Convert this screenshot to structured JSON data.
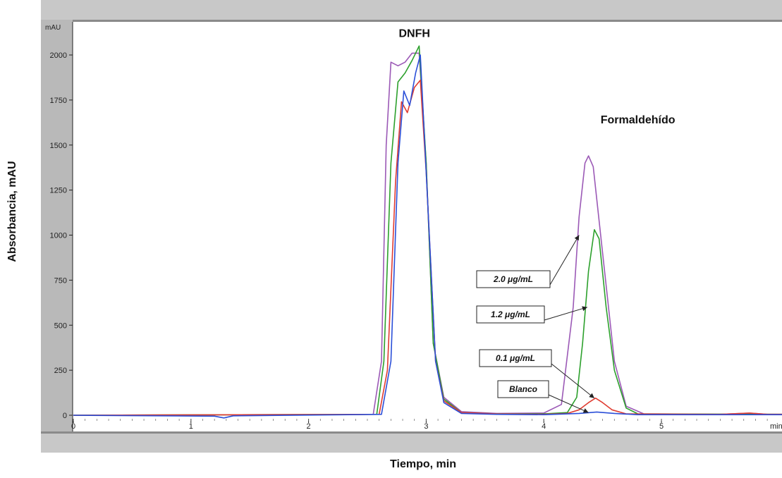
{
  "chart_data": {
    "type": "line",
    "title": "",
    "xlabel": "Tiempo, min",
    "ylabel": "Absorbancia, mAU",
    "y_unit_label": "mAU",
    "x_unit_label": "min",
    "xlim": [
      0,
      6.05
    ],
    "ylim": [
      -50,
      2200
    ],
    "x_ticks": [
      "0",
      "1",
      "2",
      "3",
      "4",
      "5"
    ],
    "y_ticks": [
      "0",
      "250",
      "500",
      "750",
      "1000",
      "1250",
      "1500",
      "1750",
      "2000"
    ],
    "peak_labels": [
      {
        "text": "DNFH",
        "x": 2.9,
        "y": 2100
      },
      {
        "text": "Formaldehído",
        "x": 4.8,
        "y": 1620
      }
    ],
    "series": [
      {
        "name": "2.0 μg/mL",
        "color": "#9b59b6",
        "points": [
          [
            0,
            0
          ],
          [
            2.55,
            5
          ],
          [
            2.62,
            300
          ],
          [
            2.66,
            1500
          ],
          [
            2.7,
            1960
          ],
          [
            2.76,
            1940
          ],
          [
            2.82,
            1960
          ],
          [
            2.88,
            2010
          ],
          [
            2.94,
            2010
          ],
          [
            3.0,
            1400
          ],
          [
            3.06,
            400
          ],
          [
            3.15,
            100
          ],
          [
            3.3,
            20
          ],
          [
            3.6,
            10
          ],
          [
            4.0,
            12
          ],
          [
            4.15,
            60
          ],
          [
            4.25,
            600
          ],
          [
            4.3,
            1100
          ],
          [
            4.35,
            1400
          ],
          [
            4.38,
            1440
          ],
          [
            4.42,
            1380
          ],
          [
            4.5,
            900
          ],
          [
            4.6,
            300
          ],
          [
            4.7,
            50
          ],
          [
            4.85,
            8
          ],
          [
            5.5,
            5
          ],
          [
            5.75,
            12
          ],
          [
            5.9,
            5
          ],
          [
            6.05,
            5
          ]
        ]
      },
      {
        "name": "1.2 μg/mL",
        "color": "#2ca02c",
        "points": [
          [
            0,
            0
          ],
          [
            2.58,
            5
          ],
          [
            2.64,
            300
          ],
          [
            2.7,
            1400
          ],
          [
            2.76,
            1850
          ],
          [
            2.82,
            1900
          ],
          [
            2.88,
            1970
          ],
          [
            2.94,
            2050
          ],
          [
            3.0,
            1400
          ],
          [
            3.06,
            400
          ],
          [
            3.15,
            90
          ],
          [
            3.3,
            15
          ],
          [
            3.6,
            8
          ],
          [
            4.0,
            8
          ],
          [
            4.2,
            15
          ],
          [
            4.28,
            100
          ],
          [
            4.33,
            400
          ],
          [
            4.38,
            800
          ],
          [
            4.43,
            1030
          ],
          [
            4.47,
            980
          ],
          [
            4.53,
            600
          ],
          [
            4.6,
            250
          ],
          [
            4.7,
            40
          ],
          [
            4.8,
            8
          ],
          [
            6.05,
            5
          ]
        ]
      },
      {
        "name": "0.1 μg/mL",
        "color": "#e03c31",
        "points": [
          [
            0,
            0
          ],
          [
            2.6,
            5
          ],
          [
            2.67,
            250
          ],
          [
            2.74,
            1300
          ],
          [
            2.79,
            1740
          ],
          [
            2.84,
            1680
          ],
          [
            2.9,
            1820
          ],
          [
            2.95,
            1860
          ],
          [
            3.0,
            1350
          ],
          [
            3.08,
            300
          ],
          [
            3.15,
            80
          ],
          [
            3.3,
            15
          ],
          [
            3.6,
            8
          ],
          [
            4.0,
            5
          ],
          [
            4.2,
            10
          ],
          [
            4.3,
            30
          ],
          [
            4.38,
            70
          ],
          [
            4.44,
            95
          ],
          [
            4.5,
            70
          ],
          [
            4.58,
            30
          ],
          [
            4.7,
            8
          ],
          [
            5.5,
            5
          ],
          [
            5.75,
            12
          ],
          [
            5.9,
            5
          ],
          [
            6.05,
            5
          ]
        ]
      },
      {
        "name": "Blanco",
        "color": "#2b4fd8",
        "points": [
          [
            0,
            0
          ],
          [
            1.2,
            -5
          ],
          [
            1.28,
            -15
          ],
          [
            1.36,
            -3
          ],
          [
            2.62,
            5
          ],
          [
            2.7,
            300
          ],
          [
            2.76,
            1400
          ],
          [
            2.81,
            1800
          ],
          [
            2.86,
            1720
          ],
          [
            2.91,
            1900
          ],
          [
            2.95,
            2000
          ],
          [
            3.0,
            1350
          ],
          [
            3.08,
            300
          ],
          [
            3.15,
            70
          ],
          [
            3.3,
            10
          ],
          [
            3.6,
            5
          ],
          [
            4.0,
            3
          ],
          [
            4.3,
            10
          ],
          [
            4.45,
            18
          ],
          [
            4.6,
            10
          ],
          [
            4.8,
            3
          ],
          [
            6.05,
            3
          ]
        ]
      }
    ],
    "annotations": [
      {
        "text": "2.0  μg/mL",
        "series": "2.0 μg/mL",
        "arrow_to": [
          4.3,
          1000
        ]
      },
      {
        "text": "1.2 μg/mL",
        "series": "1.2 μg/mL",
        "arrow_to": [
          4.37,
          600
        ]
      },
      {
        "text": "0.1  μg/mL",
        "series": "0.1 μg/mL",
        "arrow_to": [
          4.43,
          95
        ]
      },
      {
        "text": "Blanco",
        "series": "Blanco",
        "arrow_to": [
          4.38,
          15
        ]
      }
    ]
  }
}
